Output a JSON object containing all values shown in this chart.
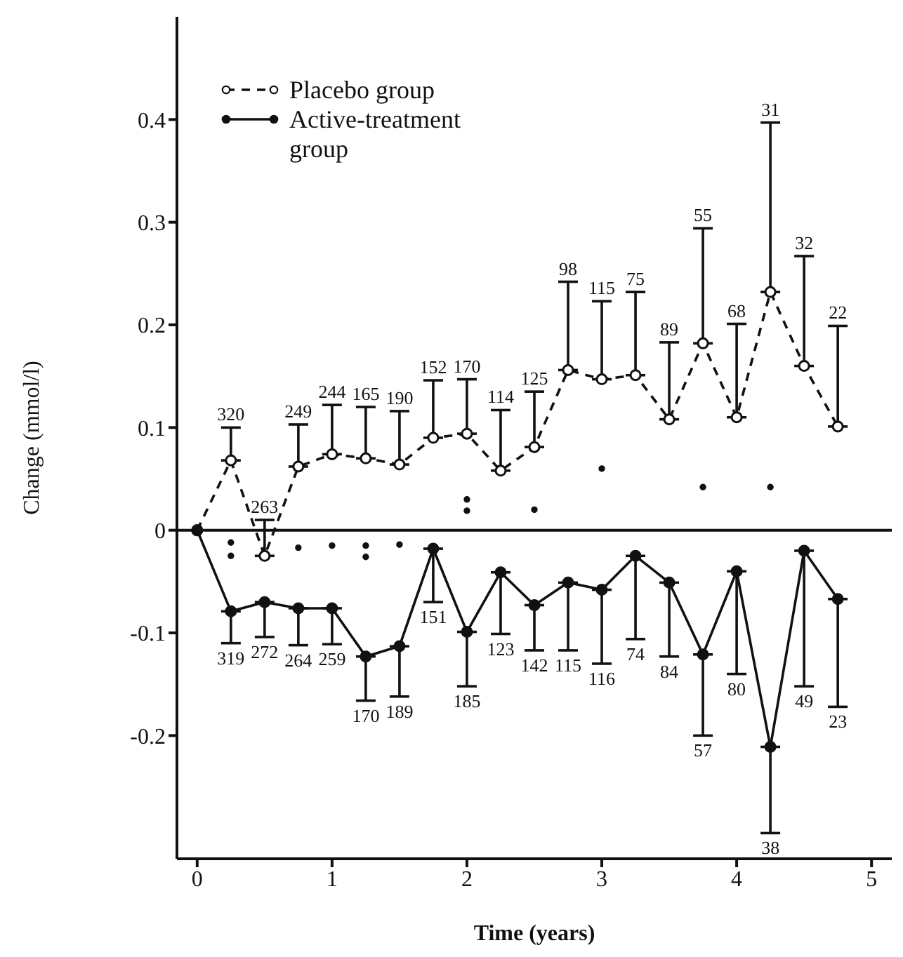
{
  "chart_data": {
    "type": "line",
    "xlabel": "Time (years)",
    "ylabel": "Change (mmol/l)",
    "x": [
      0,
      0.25,
      0.5,
      0.75,
      1,
      1.25,
      1.5,
      1.75,
      2,
      2.25,
      2.5,
      2.75,
      3,
      3.25,
      3.5,
      3.75,
      4,
      4.25,
      4.5,
      4.75
    ],
    "series": [
      {
        "name": "Placebo group",
        "color": "#111111",
        "line_style": "dashed",
        "values": [
          0,
          0.068,
          -0.025,
          0.062,
          0.074,
          0.07,
          0.064,
          0.09,
          0.094,
          0.058,
          0.081,
          0.156,
          0.147,
          0.151,
          0.108,
          0.182,
          0.11,
          0.232,
          0.16,
          0.101
        ],
        "errors": [
          null,
          [
            0.068,
            0.1
          ],
          [
            -0.025,
            0.01
          ],
          [
            0.062,
            0.103
          ],
          [
            0.074,
            0.122
          ],
          [
            0.07,
            0.12
          ],
          [
            0.064,
            0.116
          ],
          [
            0.09,
            0.146
          ],
          [
            0.094,
            0.147
          ],
          [
            0.058,
            0.117
          ],
          [
            0.081,
            0.135
          ],
          [
            0.156,
            0.242
          ],
          [
            0.147,
            0.223
          ],
          [
            0.151,
            0.232
          ],
          [
            0.108,
            0.183
          ],
          [
            0.182,
            0.294
          ],
          [
            0.11,
            0.201
          ],
          [
            0.232,
            0.397
          ],
          [
            0.16,
            0.267
          ],
          [
            0.101,
            0.199
          ]
        ]
      },
      {
        "name": "Active-treatment group",
        "color": "#111111",
        "line_style": "solid",
        "values": [
          0,
          -0.079,
          -0.07,
          -0.076,
          -0.076,
          -0.123,
          -0.113,
          -0.018,
          -0.099,
          -0.041,
          -0.073,
          -0.051,
          -0.058,
          -0.025,
          -0.051,
          -0.121,
          -0.04,
          -0.211,
          -0.02,
          -0.067
        ],
        "errors": [
          null,
          [
            -0.11,
            -0.079
          ],
          [
            -0.104,
            -0.07
          ],
          [
            -0.112,
            -0.076
          ],
          [
            -0.111,
            -0.076
          ],
          [
            -0.166,
            -0.123
          ],
          [
            -0.162,
            -0.113
          ],
          [
            -0.07,
            -0.018
          ],
          [
            -0.152,
            -0.099
          ],
          [
            -0.101,
            -0.041
          ],
          [
            -0.117,
            -0.073
          ],
          [
            -0.117,
            -0.051
          ],
          [
            -0.13,
            -0.058
          ],
          [
            -0.106,
            -0.025
          ],
          [
            -0.123,
            -0.051
          ],
          [
            -0.2,
            -0.121
          ],
          [
            -0.14,
            -0.04
          ],
          [
            -0.295,
            -0.211
          ],
          [
            -0.152,
            -0.02
          ],
          [
            -0.172,
            -0.067
          ]
        ]
      },
      {
        "type": "scatter",
        "color": "#111111",
        "x": [
          0.25,
          0.25,
          0.75,
          1,
          1.25,
          1.25,
          1.5,
          2,
          2,
          2.5,
          3,
          3.75,
          4.25
        ],
        "values": [
          -0.012,
          -0.025,
          -0.017,
          -0.015,
          -0.015,
          -0.026,
          -0.014,
          0.03,
          0.019,
          0.02,
          0.06,
          0.042,
          0.042
        ]
      }
    ],
    "marker": "circle",
    "legend": "top left",
    "xlim": [
      -0.15,
      5.15
    ],
    "xticks": [
      0,
      1,
      2,
      3,
      4,
      5
    ],
    "ylim": [
      -0.32,
      0.5
    ],
    "yticks": [
      -0.2,
      -0.1,
      0,
      0.1,
      0.2,
      0.3,
      0.4
    ],
    "ref_lines": [
      {
        "axis": "y",
        "value": 0
      }
    ],
    "annotations": [
      {
        "text": "320",
        "x": 0.25,
        "y": 0.1
      },
      {
        "text": "263",
        "x": 0.5,
        "y": 0.01
      },
      {
        "text": "249",
        "x": 0.75,
        "y": 0.103
      },
      {
        "text": "244",
        "x": 1,
        "y": 0.122
      },
      {
        "text": "165",
        "x": 1.25,
        "y": 0.12
      },
      {
        "text": "190",
        "x": 1.5,
        "y": 0.116
      },
      {
        "text": "152",
        "x": 1.75,
        "y": 0.146
      },
      {
        "text": "170",
        "x": 2,
        "y": 0.147
      },
      {
        "text": "114",
        "x": 2.25,
        "y": 0.117
      },
      {
        "text": "125",
        "x": 2.5,
        "y": 0.135
      },
      {
        "text": "98",
        "x": 2.75,
        "y": 0.242
      },
      {
        "text": "115",
        "x": 3,
        "y": 0.223
      },
      {
        "text": "75",
        "x": 3.25,
        "y": 0.232
      },
      {
        "text": "89",
        "x": 3.5,
        "y": 0.183
      },
      {
        "text": "55",
        "x": 3.75,
        "y": 0.294
      },
      {
        "text": "68",
        "x": 4,
        "y": 0.201
      },
      {
        "text": "31",
        "x": 4.25,
        "y": 0.397
      },
      {
        "text": "32",
        "x": 4.5,
        "y": 0.267
      },
      {
        "text": "22",
        "x": 4.75,
        "y": 0.199
      },
      {
        "text": "319",
        "x": 0.25,
        "y": -0.11
      },
      {
        "text": "272",
        "x": 0.5,
        "y": -0.104
      },
      {
        "text": "264",
        "x": 0.75,
        "y": -0.112
      },
      {
        "text": "259",
        "x": 1,
        "y": -0.111
      },
      {
        "text": "170",
        "x": 1.25,
        "y": -0.166
      },
      {
        "text": "189",
        "x": 1.5,
        "y": -0.162
      },
      {
        "text": "151",
        "x": 1.75,
        "y": -0.07
      },
      {
        "text": "185",
        "x": 2,
        "y": -0.152
      },
      {
        "text": "123",
        "x": 2.25,
        "y": -0.101
      },
      {
        "text": "142",
        "x": 2.5,
        "y": -0.117
      },
      {
        "text": "115",
        "x": 2.75,
        "y": -0.117
      },
      {
        "text": "116",
        "x": 3,
        "y": -0.13
      },
      {
        "text": "74",
        "x": 3.25,
        "y": -0.106
      },
      {
        "text": "84",
        "x": 3.5,
        "y": -0.123
      },
      {
        "text": "57",
        "x": 3.75,
        "y": -0.2
      },
      {
        "text": "80",
        "x": 4,
        "y": -0.14
      },
      {
        "text": "38",
        "x": 4.25,
        "y": -0.295
      },
      {
        "text": "49",
        "x": 4.5,
        "y": -0.152
      },
      {
        "text": "23",
        "x": 4.75,
        "y": -0.172
      }
    ]
  }
}
